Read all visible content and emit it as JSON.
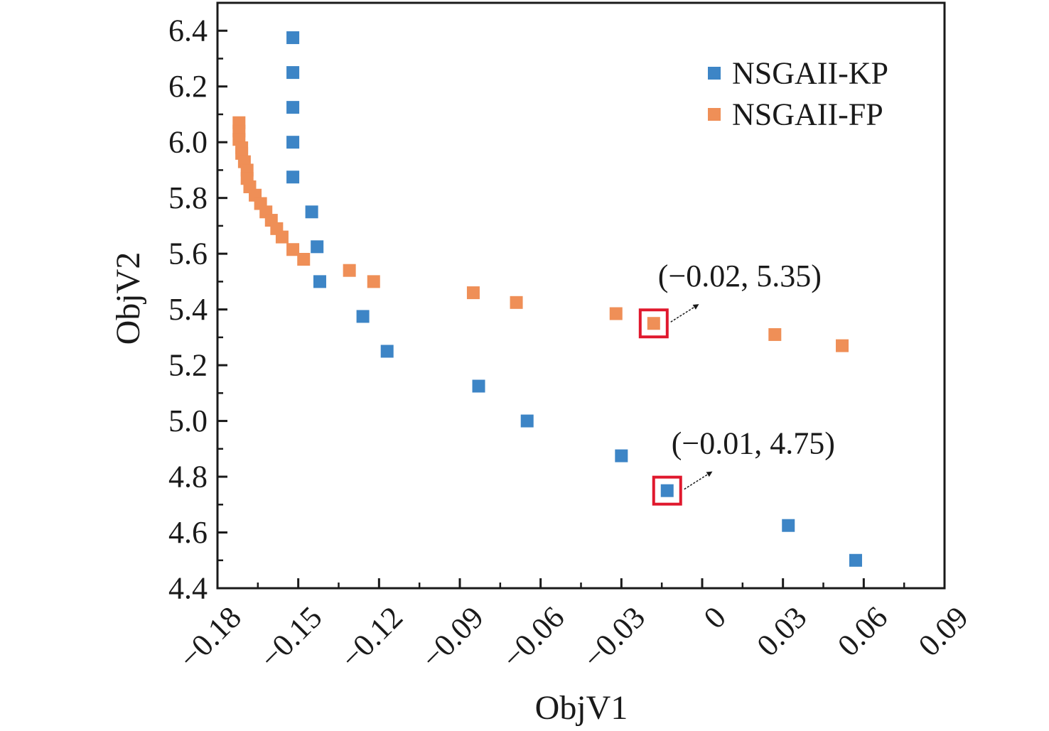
{
  "chart_data": {
    "type": "scatter",
    "xlabel": "ObjV1",
    "ylabel": "ObjV2",
    "xlim": [
      -0.18,
      0.09
    ],
    "ylim": [
      4.4,
      6.5
    ],
    "x_ticks": [
      -0.18,
      -0.15,
      -0.12,
      -0.09,
      -0.06,
      -0.03,
      0,
      0.03,
      0.06,
      0.09
    ],
    "x_tick_labels": [
      "−0.18",
      "−0.15",
      "−0.12",
      "−0.09",
      "−0.06",
      "−0.03",
      "0",
      "0.03",
      "0.06",
      "0.09"
    ],
    "y_ticks": [
      4.4,
      4.6,
      4.8,
      5.0,
      5.2,
      5.4,
      5.6,
      5.8,
      6.0,
      6.2,
      6.4
    ],
    "y_tick_labels": [
      "4.4",
      "4.6",
      "4.8",
      "5.0",
      "5.2",
      "5.4",
      "5.6",
      "5.8",
      "6.0",
      "6.2",
      "6.4"
    ],
    "grid": false,
    "legend_position": "top-right",
    "series": [
      {
        "name": "NSGAII-KP",
        "color": "#3d85c6",
        "points": [
          [
            -0.152,
            6.375
          ],
          [
            -0.152,
            6.25
          ],
          [
            -0.152,
            6.125
          ],
          [
            -0.152,
            6.0
          ],
          [
            -0.152,
            5.875
          ],
          [
            -0.145,
            5.75
          ],
          [
            -0.143,
            5.625
          ],
          [
            -0.142,
            5.5
          ],
          [
            -0.126,
            5.375
          ],
          [
            -0.117,
            5.25
          ],
          [
            -0.083,
            5.125
          ],
          [
            -0.065,
            5.0
          ],
          [
            -0.03,
            4.875
          ],
          [
            -0.013,
            4.75
          ],
          [
            0.032,
            4.625
          ],
          [
            0.057,
            4.5
          ]
        ]
      },
      {
        "name": "NSGAII-FP",
        "color": "#ef8f57",
        "points": [
          [
            -0.172,
            6.07
          ],
          [
            -0.172,
            6.04
          ],
          [
            -0.172,
            6.01
          ],
          [
            -0.171,
            5.98
          ],
          [
            -0.171,
            5.96
          ],
          [
            -0.17,
            5.93
          ],
          [
            -0.169,
            5.9
          ],
          [
            -0.169,
            5.87
          ],
          [
            -0.168,
            5.84
          ],
          [
            -0.166,
            5.81
          ],
          [
            -0.164,
            5.78
          ],
          [
            -0.162,
            5.75
          ],
          [
            -0.16,
            5.72
          ],
          [
            -0.158,
            5.69
          ],
          [
            -0.156,
            5.66
          ],
          [
            -0.152,
            5.615
          ],
          [
            -0.148,
            5.58
          ],
          [
            -0.131,
            5.54
          ],
          [
            -0.122,
            5.5
          ],
          [
            -0.085,
            5.46
          ],
          [
            -0.069,
            5.425
          ],
          [
            -0.032,
            5.385
          ],
          [
            -0.018,
            5.35
          ],
          [
            0.027,
            5.31
          ],
          [
            0.052,
            5.27
          ]
        ]
      }
    ],
    "annotations": [
      {
        "text": "(−0.02, 5.35)",
        "point": [
          -0.018,
          5.35
        ],
        "series": "NSGAII-FP"
      },
      {
        "text": "(−0.01, 4.75)",
        "point": [
          -0.013,
          4.75
        ],
        "series": "NSGAII-KP"
      }
    ],
    "highlight_color": "#e0182d"
  }
}
